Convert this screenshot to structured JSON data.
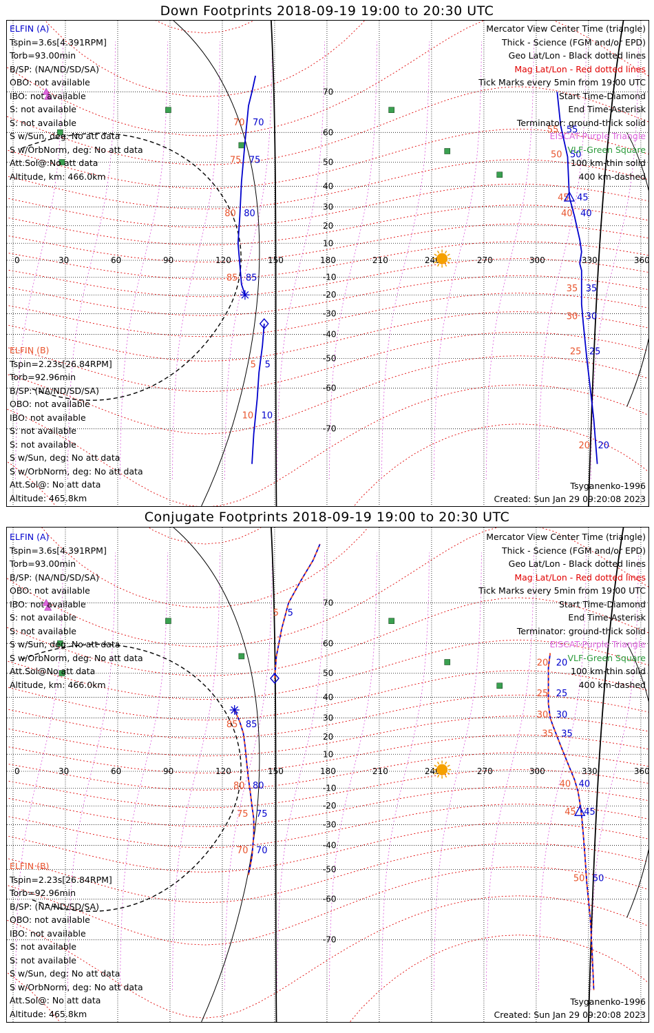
{
  "top": {
    "title": "Down Footprints 2018-09-19 19:00 to 20:30 UTC",
    "elfin_a": [
      "ELFIN (A)",
      "Tspin=3.6s[4.391RPM]",
      "Torb=93.00min",
      "B/SP: (NA/ND/SD/SA)",
      "OBO: not available",
      "IBO: not available",
      "S: not available",
      "S: not available",
      "S w/Sun, deg: No att data",
      "S w/OrbNorm, deg: No att data",
      "Att.Sol@:No att data",
      "Altitude, km: 466.0km"
    ],
    "elfin_b": [
      "ELFIN (B)",
      "Tspin=2.23s[26.84RPM]",
      "Torb=92.96min",
      "B/SP: (NA/ND/SD/SA)",
      "OBO: not available",
      "IBO: not available",
      "S: not available",
      "S: not available",
      "S w/Sun, deg: No att data",
      "S w/OrbNorm, deg: No att data",
      "Att.Sol@: No att data",
      "Altitude: 465.8km"
    ],
    "legend": [
      "Mercator View Center Time (triangle)",
      "Thick - Science (FGM and/or EPD)",
      "Geo Lat/Lon - Black dotted lines",
      "Mag Lat/Lon - Red dotted lines",
      "Tick Marks every 5min from 19:00 UTC",
      "Start Time-Diamond",
      "End Time-Asterisk",
      "Terminator: ground-thick solid",
      "EISCAT-Purple Triangle",
      "VLF-Green Square",
      "100 km-thin solid",
      "400 km-dashed"
    ],
    "model": "Tsyganenko-1996",
    "created": "Created: Sun Jan 29 09:20:08 2023",
    "track_a": {
      "points": [
        [
          133,
          -20
        ],
        [
          131,
          -14
        ],
        [
          129,
          10
        ],
        [
          130,
          25
        ],
        [
          131,
          42
        ],
        [
          133,
          57
        ],
        [
          135,
          67
        ],
        [
          137,
          70
        ],
        [
          139,
          73
        ]
      ],
      "ticks": [
        {
          "lon": 131,
          "lat": -10,
          "t": "85"
        },
        {
          "lon": 130,
          "lat": 27,
          "t": "80"
        },
        {
          "lon": 133,
          "lat": 51,
          "t": "75"
        },
        {
          "lon": 135,
          "lat": 63,
          "t": "70"
        }
      ]
    },
    "track_b": {
      "points": [
        [
          144,
          -35
        ],
        [
          143,
          -45
        ],
        [
          141,
          -55
        ],
        [
          140,
          -63
        ],
        [
          138,
          -71
        ],
        [
          137,
          -76
        ]
      ],
      "ticks": [
        {
          "lon": 142,
          "lat": -52,
          "t": "5"
        },
        {
          "lon": 140,
          "lat": -67,
          "t": "10"
        }
      ]
    },
    "track_east": {
      "points": [
        [
          312,
          70
        ],
        [
          314,
          62
        ],
        [
          318,
          52
        ],
        [
          319,
          35
        ],
        [
          322,
          25
        ],
        [
          325,
          12
        ],
        [
          326,
          5
        ],
        [
          325,
          -2
        ],
        [
          326,
          -6
        ],
        [
          326,
          -25
        ],
        [
          327,
          -35
        ],
        [
          329,
          -50
        ],
        [
          331,
          -60
        ],
        [
          333,
          -68
        ],
        [
          335,
          -76
        ]
      ],
      "ticks": [
        {
          "lon": 315,
          "lat": 61,
          "t": "55"
        },
        {
          "lon": 317,
          "lat": 53,
          "t": "50"
        },
        {
          "lon": 321,
          "lat": 35,
          "t": "45"
        },
        {
          "lon": 323,
          "lat": 27,
          "t": "40"
        },
        {
          "lon": 326,
          "lat": -16,
          "t": "35"
        },
        {
          "lon": 326,
          "lat": -31,
          "t": "30"
        },
        {
          "lon": 328,
          "lat": -47,
          "t": "25"
        },
        {
          "lon": 333,
          "lat": -73,
          "t": "20"
        }
      ]
    },
    "start": [
      144,
      -35
    ],
    "end": [
      133,
      -20
    ],
    "center": [
      319,
      35
    ]
  },
  "bottom": {
    "title": "Conjugate Footprints 2018-09-19 19:00 to 20:30 UTC",
    "elfin_a": [
      "ELFIN (A)",
      "Tspin=3.6s[4.391RPM]",
      "Torb=93.00min",
      "B/SP: (NA/ND/SD/SA)",
      "OBO: not available",
      "IBO: not available",
      "S: not available",
      "S: not available",
      "S w/Sun, deg: No att data",
      "S w/OrbNorm, deg: No att data",
      "Att.Sol@No att data",
      "Altitude, km: 466.0km"
    ],
    "elfin_b": [
      "ELFIN (B)",
      "Tspin=2.23s[26.84RPM]",
      "Torb=92.96min",
      "B/SP: (NA/ND/SD/SA)",
      "OBO: not available",
      "IBO: not available",
      "S: not available",
      "S: not available",
      "S w/Sun, deg: No att data",
      "S w/OrbNorm, deg: No att data",
      "Att.Sol@: No att data",
      "Altitude: 465.8km"
    ],
    "legend": [
      "Mercator View Center Time (triangle)",
      "Thick - Science (FGM and/or EPD)",
      "Geo Lat/Lon - Black dotted lines",
      "Mag Lat/Lon - Red dotted lines",
      "Tick Marks every 5min from 19:00 UTC",
      "Start Time-Diamond",
      "End Time-Asterisk",
      "Terminator: ground-thick solid",
      "EISCAT-Purple Triangle",
      "VLF-Green Square",
      "100 km-thin solid",
      "400 km-dashed"
    ],
    "model": "Tsyganenko-1996",
    "created": "Created: Sun Jan 29 09:20:08 2023",
    "track_w": {
      "points": [
        [
          127,
          34
        ],
        [
          130,
          28
        ],
        [
          132,
          22
        ],
        [
          133,
          15
        ],
        [
          134,
          5
        ],
        [
          135,
          -5
        ],
        [
          136,
          -12
        ],
        [
          137,
          -20
        ],
        [
          138,
          -27
        ],
        [
          138,
          -35
        ],
        [
          137,
          -45
        ],
        [
          135,
          -52
        ]
      ],
      "ticks": [
        {
          "lon": 131,
          "lat": 27,
          "t": "85"
        },
        {
          "lon": 135,
          "lat": -8,
          "t": "80"
        },
        {
          "lon": 137,
          "lat": -24,
          "t": "75"
        },
        {
          "lon": 137,
          "lat": -42,
          "t": "70"
        }
      ]
    },
    "track_n": {
      "points": [
        [
          150,
          48
        ],
        [
          151,
          56
        ],
        [
          154,
          64
        ],
        [
          158,
          70
        ],
        [
          165,
          74
        ],
        [
          172,
          77
        ],
        [
          176,
          79
        ]
      ],
      "ticks": [
        {
          "lon": 155,
          "lat": 68,
          "t": "5"
        }
      ]
    },
    "track_e": {
      "points": [
        [
          308,
          57
        ],
        [
          307,
          52
        ],
        [
          307,
          45
        ],
        [
          307,
          37
        ],
        [
          308,
          30
        ],
        [
          310,
          25
        ],
        [
          314,
          15
        ],
        [
          318,
          5
        ],
        [
          322,
          -5
        ],
        [
          324,
          -12
        ],
        [
          325,
          -18
        ],
        [
          326,
          -25
        ],
        [
          327,
          -35
        ],
        [
          328,
          -45
        ],
        [
          329,
          -55
        ],
        [
          331,
          -65
        ],
        [
          332,
          -72
        ],
        [
          333,
          -78
        ]
      ],
      "ticks": [
        {
          "lon": 309,
          "lat": 54,
          "t": "20"
        },
        {
          "lon": 309,
          "lat": 42,
          "t": "25"
        },
        {
          "lon": 309,
          "lat": 32,
          "t": "30"
        },
        {
          "lon": 312,
          "lat": 22,
          "t": "35"
        },
        {
          "lon": 322,
          "lat": -7,
          "t": "40"
        },
        {
          "lon": 325,
          "lat": -23,
          "t": "45"
        },
        {
          "lon": 330,
          "lat": -53,
          "t": "50"
        }
      ]
    },
    "start": [
      150,
      48
    ],
    "end": [
      127,
      34
    ],
    "center": [
      325,
      -23
    ]
  },
  "map": {
    "lon_ticks": [
      "0",
      "30",
      "60",
      "90",
      "120",
      "150",
      "180",
      "210",
      "240",
      "270",
      "300",
      "330",
      "360"
    ],
    "lat_ticks": [
      {
        "lat": 70,
        "t": "70"
      },
      {
        "lat": 60,
        "t": "60"
      },
      {
        "lat": 50,
        "t": "50"
      },
      {
        "lat": 40,
        "t": "40"
      },
      {
        "lat": 30,
        "t": "30"
      },
      {
        "lat": 20,
        "t": "20"
      },
      {
        "lat": 10,
        "t": "10"
      },
      {
        "lat": -10,
        "t": "-10"
      },
      {
        "lat": -20,
        "t": "-20"
      },
      {
        "lat": -30,
        "t": "-30"
      },
      {
        "lat": -40,
        "t": "-40"
      },
      {
        "lat": -50,
        "t": "-50"
      },
      {
        "lat": -60,
        "t": "-60"
      },
      {
        "lat": -70,
        "t": "-70"
      }
    ],
    "vlf_sites": [
      [
        89,
        66
      ],
      [
        27,
        60
      ],
      [
        28,
        50
      ],
      [
        131,
        56
      ],
      [
        217,
        66
      ],
      [
        249,
        54
      ],
      [
        279,
        45
      ]
    ],
    "eiscat_sites": [
      [
        19,
        70
      ],
      [
        20,
        69
      ]
    ],
    "sun": [
      246,
      1
    ]
  }
}
